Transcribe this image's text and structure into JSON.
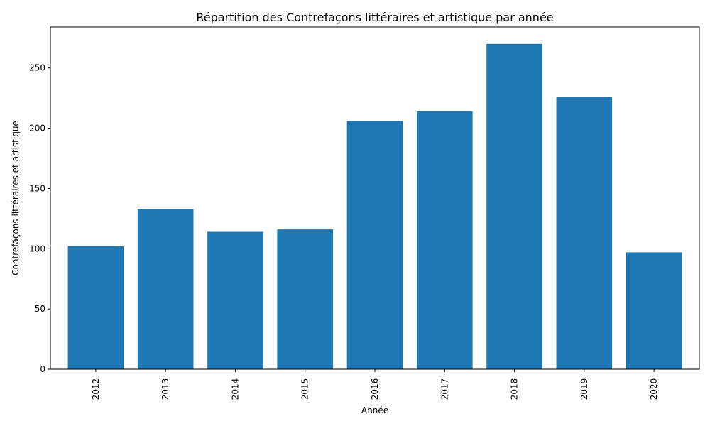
{
  "chart_data": {
    "type": "bar",
    "title": "Répartition des Contrefaçons littéraires et artistique par année",
    "xlabel": "Année",
    "ylabel": "Contrefaçons littéraires et artistique",
    "categories": [
      "2012",
      "2013",
      "2014",
      "2015",
      "2016",
      "2017",
      "2018",
      "2019",
      "2020"
    ],
    "values": [
      102,
      133,
      114,
      116,
      206,
      214,
      270,
      226,
      97
    ],
    "ylim": [
      0,
      284
    ],
    "yticks": [
      0,
      50,
      100,
      150,
      200,
      250
    ],
    "bar_color": "#1f77b4",
    "grid": false,
    "legend": "none"
  }
}
